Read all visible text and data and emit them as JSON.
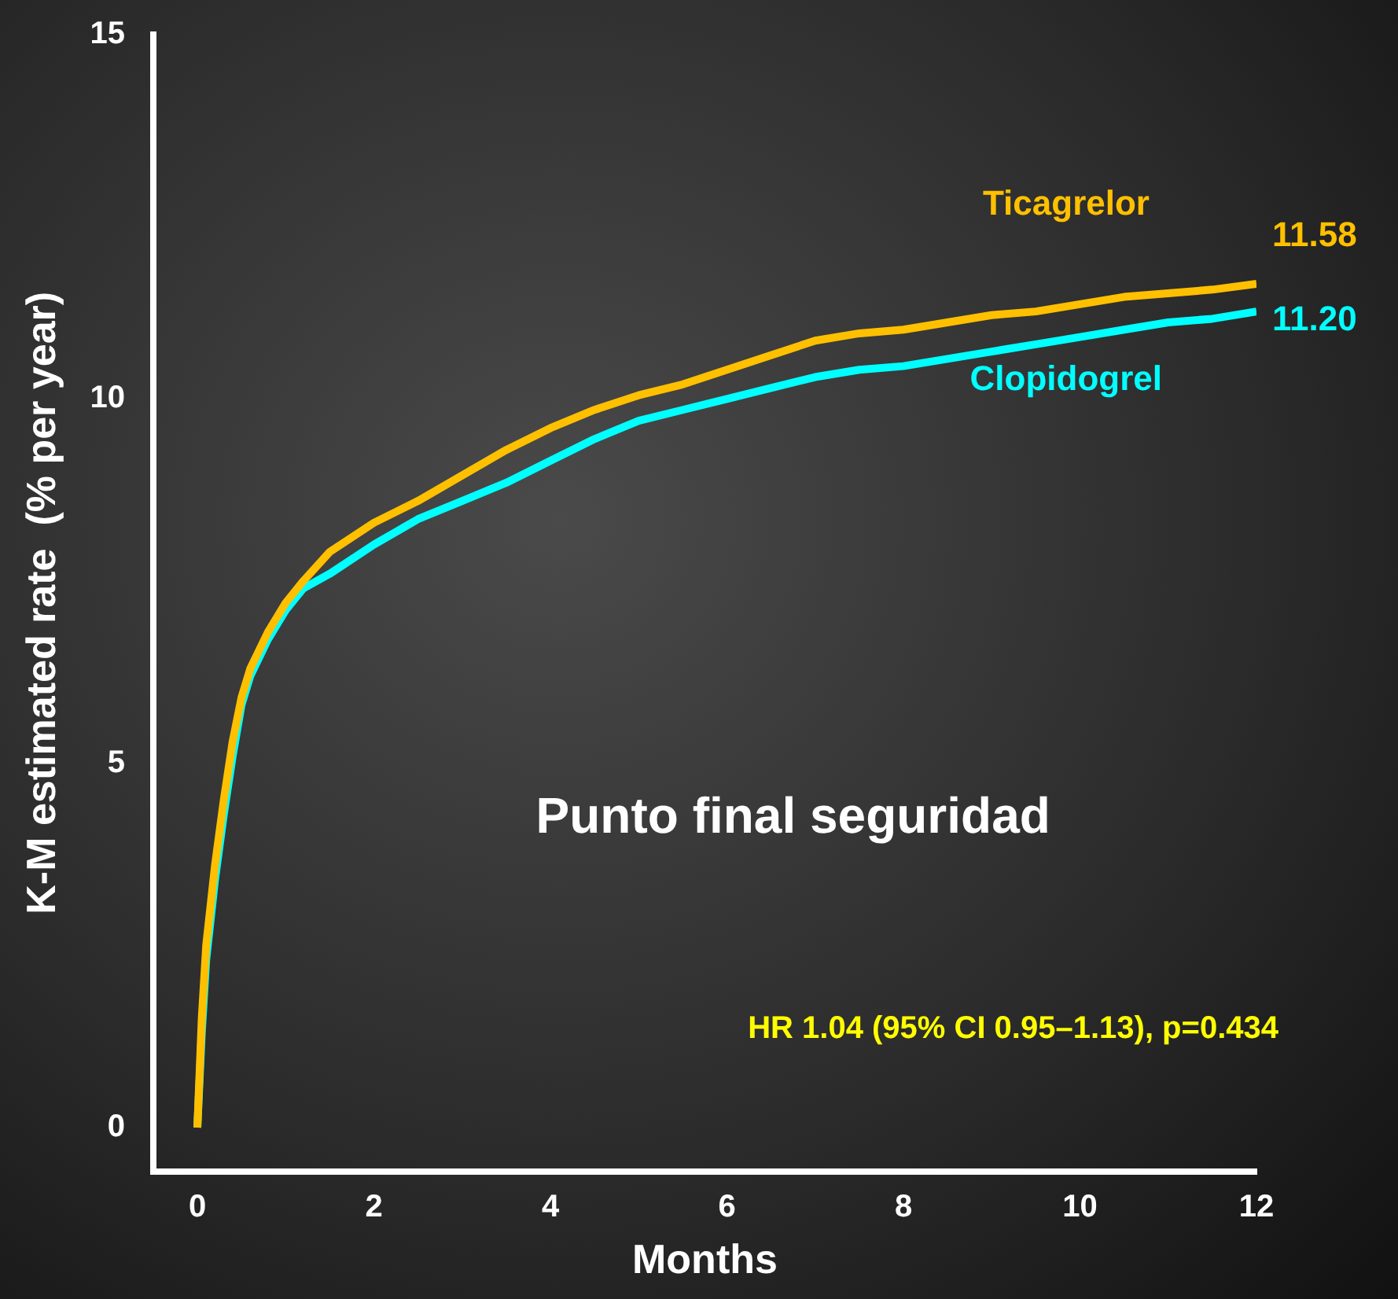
{
  "chart_data": {
    "type": "line",
    "xlabel": "Months",
    "ylabel": "K-M estimated rate  (% per year)",
    "annotations": [
      "Punto final seguridad",
      "HR 1.04 (95% CI 0.95–1.13), p=0.434"
    ],
    "xlim": [
      -0.5,
      12
    ],
    "xticks": [
      0,
      2,
      4,
      6,
      8,
      10,
      12
    ],
    "ylim": [
      -0.6,
      15
    ],
    "yticks": [
      0,
      5,
      10,
      15
    ],
    "grid": false,
    "legend": false,
    "marker": "none",
    "line_style": "solid",
    "series": [
      {
        "name": "Ticagrelor",
        "color": "#ffc000",
        "x": [
          0,
          0.05,
          0.1,
          0.2,
          0.3,
          0.4,
          0.5,
          0.6,
          0.8,
          1,
          1.2,
          1.5,
          2,
          2.5,
          3,
          3.5,
          4,
          4.5,
          5,
          5.5,
          6,
          6.5,
          7,
          7.5,
          8,
          8.5,
          9,
          9.5,
          10,
          10.5,
          11,
          11.5,
          12
        ],
        "values": [
          0,
          1.5,
          2.5,
          3.6,
          4.5,
          5.3,
          5.9,
          6.3,
          6.8,
          7.2,
          7.5,
          7.9,
          8.3,
          8.6,
          8.95,
          9.3,
          9.6,
          9.85,
          10.05,
          10.2,
          10.4,
          10.6,
          10.8,
          10.9,
          10.95,
          11.05,
          11.15,
          11.2,
          11.3,
          11.4,
          11.45,
          11.5,
          11.58
        ],
        "value_labels": [
          null,
          null,
          null,
          null,
          null,
          null,
          null,
          null,
          null,
          null,
          null,
          null,
          null,
          null,
          null,
          null,
          null,
          null,
          null,
          null,
          null,
          null,
          null,
          null,
          null,
          null,
          null,
          null,
          null,
          null,
          null,
          null,
          "11.58"
        ]
      },
      {
        "name": "Clopidogrel",
        "color": "#00ffff",
        "x": [
          0,
          0.05,
          0.1,
          0.2,
          0.3,
          0.4,
          0.5,
          0.6,
          0.8,
          1,
          1.2,
          1.5,
          2,
          2.5,
          3,
          3.5,
          4,
          4.5,
          5,
          5.5,
          6,
          6.5,
          7,
          7.5,
          8,
          8.5,
          9,
          9.5,
          10,
          10.5,
          11,
          11.5,
          12
        ],
        "values": [
          0,
          1.3,
          2.3,
          3.4,
          4.3,
          5.1,
          5.8,
          6.2,
          6.7,
          7.1,
          7.4,
          7.6,
          8.0,
          8.35,
          8.6,
          8.85,
          9.15,
          9.45,
          9.7,
          9.85,
          10.0,
          10.15,
          10.3,
          10.4,
          10.45,
          10.55,
          10.65,
          10.75,
          10.85,
          10.95,
          11.05,
          11.1,
          11.2
        ],
        "value_labels": [
          null,
          null,
          null,
          null,
          null,
          null,
          null,
          null,
          null,
          null,
          null,
          null,
          null,
          null,
          null,
          null,
          null,
          null,
          null,
          null,
          null,
          null,
          null,
          null,
          null,
          null,
          null,
          null,
          null,
          null,
          null,
          null,
          "11.20"
        ]
      }
    ]
  }
}
